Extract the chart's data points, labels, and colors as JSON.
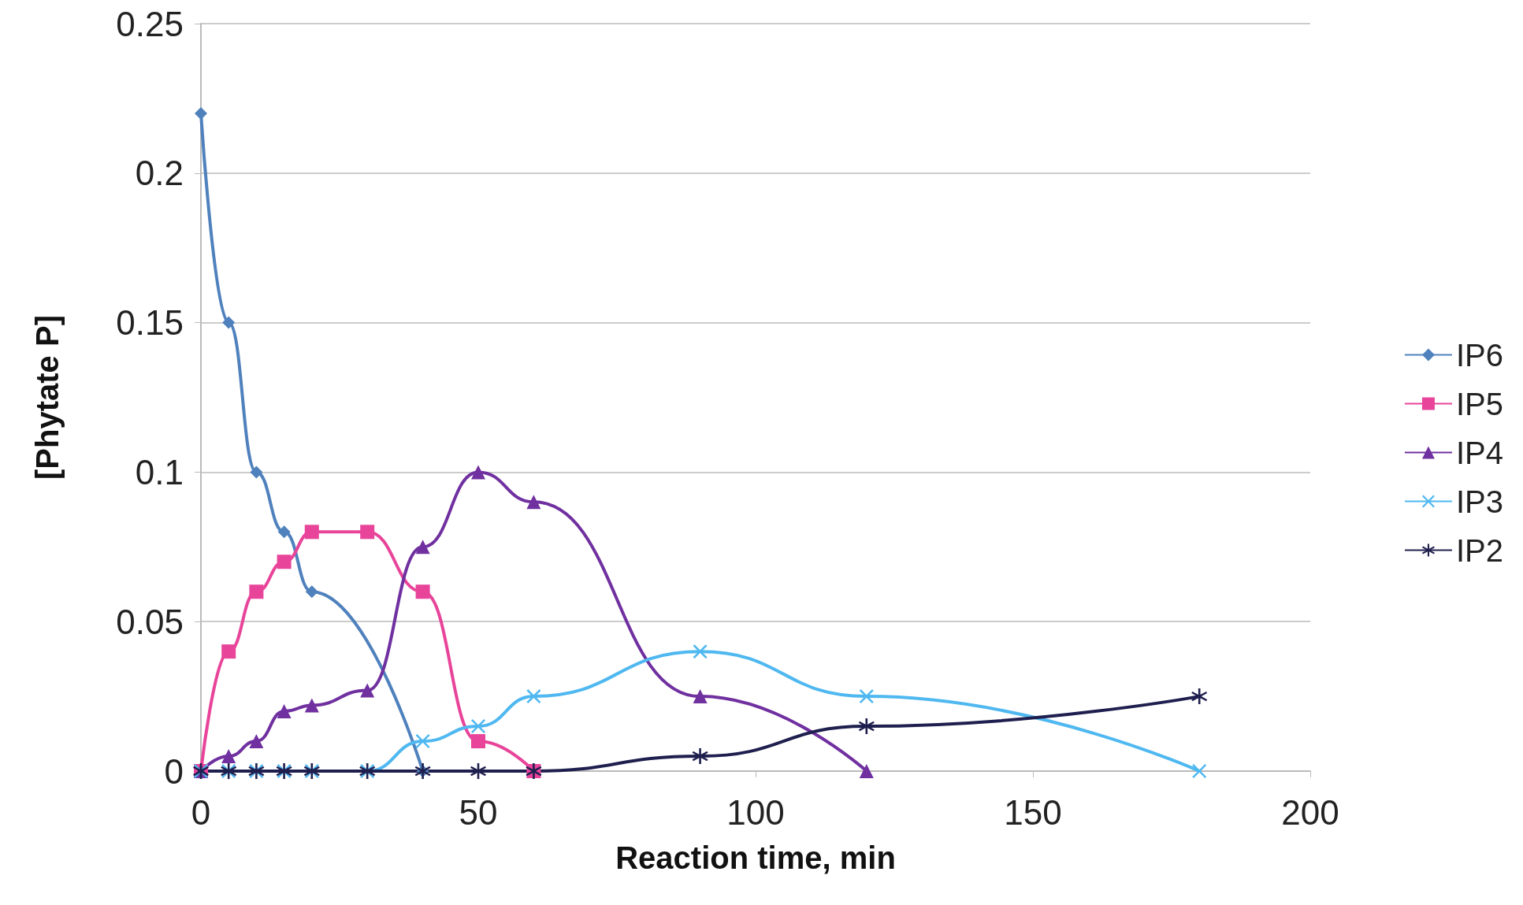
{
  "chart_data": {
    "type": "line",
    "xlabel": "Reaction time, min",
    "ylabel": "[Phytate P]",
    "xlim": [
      0,
      200
    ],
    "xticks": [
      0,
      50,
      100,
      150,
      200
    ],
    "ylim": [
      0,
      0.25
    ],
    "yticks": [
      0,
      0.05,
      0.1,
      0.15,
      0.2,
      0.25
    ],
    "grid": "y",
    "legend": "right",
    "series": [
      {
        "name": "IP6",
        "color": "#4f81bd",
        "marker": "diamond",
        "x": [
          0,
          5,
          10,
          15,
          20,
          40
        ],
        "values": [
          0.22,
          0.15,
          0.1,
          0.08,
          0.06,
          0
        ]
      },
      {
        "name": "IP5",
        "color": "#e8449a",
        "marker": "square",
        "x": [
          0,
          5,
          10,
          15,
          20,
          30,
          40,
          50,
          60
        ],
        "values": [
          0,
          0.04,
          0.06,
          0.07,
          0.08,
          0.08,
          0.06,
          0.01,
          0
        ]
      },
      {
        "name": "IP4",
        "color": "#7030a0",
        "marker": "triangle",
        "x": [
          0,
          5,
          10,
          15,
          20,
          30,
          40,
          50,
          60,
          90,
          120
        ],
        "values": [
          0,
          0.005,
          0.01,
          0.02,
          0.022,
          0.027,
          0.075,
          0.1,
          0.09,
          0.025,
          0
        ]
      },
      {
        "name": "IP3",
        "color": "#4fb8f0",
        "marker": "cross",
        "x": [
          0,
          5,
          10,
          15,
          20,
          30,
          40,
          50,
          60,
          90,
          120,
          180
        ],
        "values": [
          0,
          0,
          0,
          0,
          0,
          0,
          0.01,
          0.015,
          0.025,
          0.04,
          0.025,
          0
        ]
      },
      {
        "name": "IP2",
        "color": "#1f1f4f",
        "marker": "star",
        "x": [
          0,
          5,
          10,
          15,
          20,
          30,
          40,
          50,
          60,
          90,
          120,
          180
        ],
        "values": [
          0,
          0,
          0,
          0,
          0,
          0,
          0,
          0,
          0,
          0.005,
          0.015,
          0.025
        ]
      }
    ]
  }
}
